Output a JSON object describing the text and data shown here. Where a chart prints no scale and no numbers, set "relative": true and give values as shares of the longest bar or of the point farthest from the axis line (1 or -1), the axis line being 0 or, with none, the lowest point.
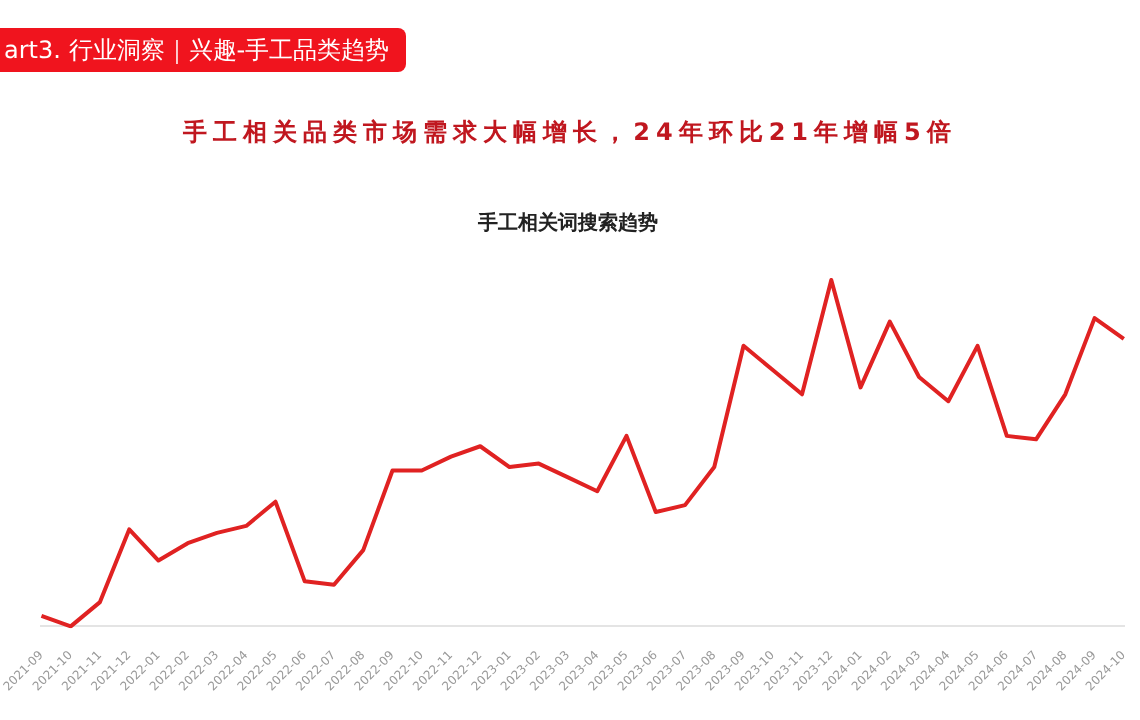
{
  "chart_data": {
    "type": "line",
    "title": "手工相关词搜索趋势",
    "subtitle": "手工相关品类市场需求大幅增长，24年环比21年增幅5倍",
    "annotations": [
      "art3. 行业洞察｜兴趣-手工品类趋势"
    ],
    "relative": true,
    "categories": [
      "2021-09",
      "2021-10",
      "2021-11",
      "2021-12",
      "2022-01",
      "2022-02",
      "2022-03",
      "2022-04",
      "2022-05",
      "2022-06",
      "2022-07",
      "2022-08",
      "2022-09",
      "2022-10",
      "2022-11",
      "2022-12",
      "2023-01",
      "2023-02",
      "2023-03",
      "2023-04",
      "2023-05",
      "2023-06",
      "2023-07",
      "2023-08",
      "2023-09",
      "2023-10",
      "2023-11",
      "2023-12",
      "2024-01",
      "2024-02",
      "2024-03",
      "2024-04",
      "2024-05",
      "2024-06",
      "2024-07",
      "2024-08",
      "2024-09",
      "2024-10"
    ],
    "series": [
      {
        "color": "#e02222",
        "values": [
          0.03,
          0,
          0.07,
          0.28,
          0.19,
          0.24,
          0.27,
          0.29,
          0.36,
          0.13,
          0.12,
          0.22,
          0.45,
          0.45,
          0.49,
          0.52,
          0.46,
          0.47,
          0.43,
          0.39,
          0.55,
          0.33,
          0.35,
          0.46,
          0.81,
          0.74,
          0.67,
          1,
          0.69,
          0.88,
          0.72,
          0.65,
          0.81,
          0.55,
          0.54,
          0.67,
          0.89,
          0.83
        ]
      }
    ],
    "legend": false
  }
}
